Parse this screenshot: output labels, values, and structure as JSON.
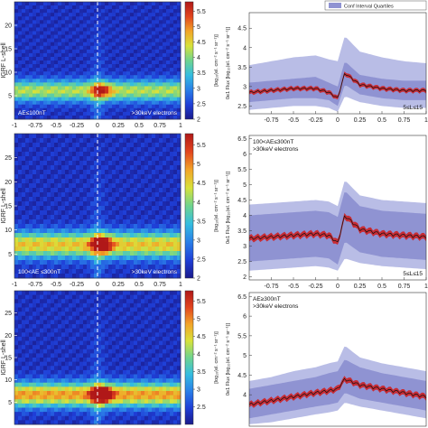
{
  "colors": {
    "quartile_band": "#8f93d2",
    "conf_band": "#b9bde6",
    "median_line": "#d21a1a",
    "dashed_line": "#ffffff"
  },
  "colormap": [
    "#1a1a8c",
    "#1f3fd8",
    "#2a7fe8",
    "#34bde0",
    "#6fd48e",
    "#d8e23a",
    "#f2a428",
    "#e2451e",
    "#b01818"
  ],
  "legend": {
    "label": "Conf Interval Quartiles"
  },
  "heatmaps": [
    {
      "ylabel": "IGRF L-shell",
      "yticks": [
        "5",
        "10",
        "15",
        "20"
      ],
      "xticks": [
        "-1",
        "-0.75",
        "-0.5",
        "-0.25",
        "0",
        "0.25",
        "0.5",
        "0.75",
        "1"
      ],
      "label_left": "AE≤100nT",
      "label_right": ">30keV electrons",
      "cbar_label": "[log₁₀(el. cm⁻² s⁻¹ sr⁻¹)]",
      "cbar_ticks": [
        "2",
        "2.5",
        "3",
        "3.5",
        "4",
        "4.5",
        "5",
        "5.5"
      ],
      "cbar_range": [
        2,
        5.8
      ],
      "intensity": 0.45
    },
    {
      "ylabel": "IGRF L-shell",
      "yticks": [
        "5",
        "10",
        "15",
        "20",
        "25"
      ],
      "xticks": [
        "-1",
        "-0.75",
        "-0.5",
        "-0.25",
        "0",
        "0.25",
        "0.5",
        "0.75",
        "1"
      ],
      "label_left": "100<AE ≤300nT",
      "label_right": ">30keV electrons",
      "cbar_label": "[log₁₀(el. cm⁻² s⁻¹ sr⁻¹)]",
      "cbar_ticks": [
        "2",
        "2.5",
        "3",
        "3.5",
        "4",
        "4.5",
        "5",
        "5.5"
      ],
      "cbar_range": [
        2,
        5.8
      ],
      "intensity": 0.75
    },
    {
      "ylabel": "IGRF L-shell",
      "yticks": [
        "5",
        "10",
        "15",
        "20",
        "25"
      ],
      "xticks": [],
      "label_left": "",
      "label_right": "",
      "cbar_label": "[log₁₀(el. cm⁻² s⁻¹ sr⁻¹)]",
      "cbar_ticks": [
        "2.5",
        "3",
        "3.5",
        "4",
        "4.5",
        "5",
        "5.5"
      ],
      "cbar_range": [
        2,
        5.8
      ],
      "intensity": 0.95
    }
  ],
  "chart_data": [
    {
      "type": "line",
      "panel": "flux-1",
      "ylabel": "0e1 Flux [log₁₀(el. cm⁻² s⁻¹ sr⁻¹)]",
      "yticks": [
        "2.5",
        "3",
        "3.5",
        "4",
        "4.5"
      ],
      "xticks": [
        "-0.75",
        "-0.5",
        "-0.25",
        "0",
        "0.25",
        "0.5",
        "0.75",
        "1"
      ],
      "xlim": [
        -1,
        1
      ],
      "ylim": [
        2.3,
        4.9
      ],
      "annotation": "5≤L≤15",
      "x": [
        -1,
        -0.75,
        -0.5,
        -0.25,
        -0.1,
        0,
        0.08,
        0.25,
        0.5,
        0.75,
        1
      ],
      "median": [
        2.85,
        2.9,
        2.95,
        2.95,
        2.85,
        2.7,
        3.35,
        3.05,
        2.95,
        2.9,
        2.9
      ],
      "q_low": [
        2.6,
        2.65,
        2.7,
        2.7,
        2.65,
        2.5,
        3.05,
        2.8,
        2.7,
        2.65,
        2.65
      ],
      "q_high": [
        3.1,
        3.15,
        3.2,
        3.25,
        3.1,
        3.0,
        3.65,
        3.3,
        3.2,
        3.15,
        3.15
      ],
      "ci_low": [
        2.4,
        2.45,
        2.5,
        2.5,
        2.45,
        2.35,
        2.75,
        2.6,
        2.5,
        2.45,
        2.45
      ],
      "ci_high": [
        3.55,
        3.65,
        3.75,
        3.8,
        3.7,
        3.65,
        4.3,
        3.9,
        3.75,
        3.65,
        3.6
      ]
    },
    {
      "type": "line",
      "panel": "flux-2",
      "ylabel": "0e1 Flux [log₁₀(el. cm⁻² s⁻¹ sr⁻¹)]",
      "yticks": [
        "2",
        "2.5",
        "3",
        "3.5",
        "4",
        "4.5",
        "5",
        "5.5",
        "6",
        "6.5"
      ],
      "xticks": [
        "-0.75",
        "-0.5",
        "-0.25",
        "0",
        "0.25",
        "0.5",
        "0.75",
        "1"
      ],
      "xlim": [
        -1,
        1
      ],
      "ylim": [
        1.9,
        6.6
      ],
      "annotation": "5≤L≤15",
      "text_line1": "100<AE≤300nT",
      "text_line2": ">30keV electrons",
      "x": [
        -1,
        -0.75,
        -0.5,
        -0.25,
        -0.1,
        0,
        0.08,
        0.25,
        0.5,
        0.75,
        1
      ],
      "median": [
        3.25,
        3.3,
        3.35,
        3.4,
        3.35,
        3.1,
        4.0,
        3.55,
        3.4,
        3.35,
        3.3
      ],
      "q_low": [
        2.5,
        2.55,
        2.6,
        2.65,
        2.6,
        2.4,
        3.15,
        2.8,
        2.65,
        2.6,
        2.55
      ],
      "q_high": [
        4.0,
        4.05,
        4.1,
        4.15,
        4.1,
        3.95,
        4.8,
        4.3,
        4.15,
        4.1,
        4.05
      ],
      "ci_low": [
        2.2,
        2.25,
        2.3,
        2.35,
        2.3,
        2.2,
        2.6,
        2.45,
        2.35,
        2.3,
        2.25
      ],
      "ci_high": [
        4.35,
        4.4,
        4.45,
        4.5,
        4.45,
        4.3,
        5.15,
        4.65,
        4.5,
        4.45,
        4.4
      ]
    },
    {
      "type": "line",
      "panel": "flux-3",
      "ylabel": "0e1 Flux [log₁₀(el. cm⁻² s⁻¹ sr⁻¹)]",
      "yticks": [
        "4",
        "4.5",
        "5",
        "5.5",
        "6",
        "6.5"
      ],
      "xticks": [],
      "xlim": [
        -1,
        1
      ],
      "ylim": [
        3.2,
        6.6
      ],
      "text_line1": "AE≥300nT",
      "text_line2": ">30keV electrons",
      "x": [
        -1,
        -0.75,
        -0.5,
        -0.25,
        -0.1,
        0,
        0.08,
        0.25,
        0.5,
        0.75,
        1
      ],
      "median": [
        3.75,
        3.85,
        3.95,
        4.05,
        4.1,
        4.15,
        4.4,
        4.25,
        4.15,
        4.05,
        3.95
      ],
      "q_low": [
        3.4,
        3.5,
        3.6,
        3.7,
        3.75,
        3.8,
        4.05,
        3.9,
        3.8,
        3.7,
        3.6
      ],
      "q_high": [
        4.15,
        4.25,
        4.35,
        4.45,
        4.55,
        4.6,
        4.9,
        4.7,
        4.55,
        4.45,
        4.35
      ],
      "ci_low": [
        3.25,
        3.3,
        3.4,
        3.5,
        3.55,
        3.6,
        3.8,
        3.7,
        3.6,
        3.5,
        3.4
      ],
      "ci_high": [
        4.35,
        4.45,
        4.6,
        4.7,
        4.8,
        4.85,
        5.25,
        4.95,
        4.8,
        4.7,
        4.6
      ]
    }
  ]
}
